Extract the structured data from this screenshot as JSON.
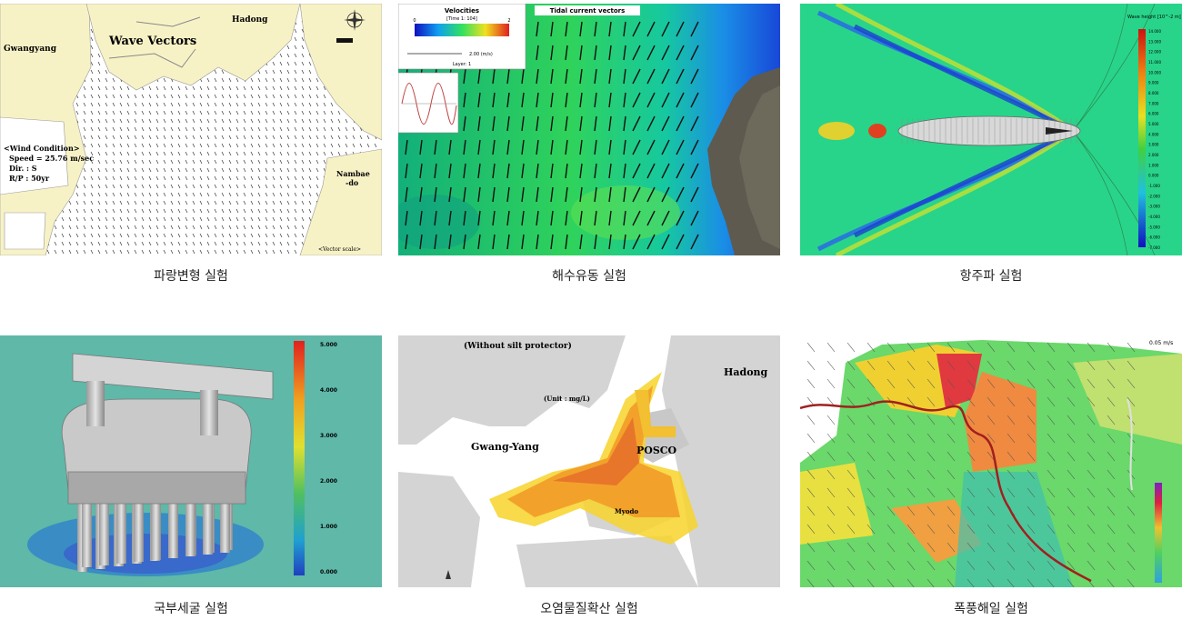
{
  "panels": [
    {
      "caption": "파랑변형 실험",
      "title": "Wave Vectors",
      "places": [
        "Gwangyang",
        "Hadong",
        "Nambae",
        "-do"
      ],
      "wind_condition": {
        "heading": "<Wind Condition>",
        "speed": "Speed = 25.76 m/sec",
        "dir": "Dir. : S",
        "rp": "R/P : 50yr"
      },
      "vector_scale": "<Vector scale>"
    },
    {
      "caption": "해수유동 실험",
      "title": "Tidal current vectors",
      "legend": {
        "title": "Velocities",
        "sub": "[Time 1: 104]",
        "min": "0",
        "max": "2",
        "speed_label": "2.00 (m/s)",
        "layer": "Layer: 1"
      }
    },
    {
      "caption": "항주파 실험",
      "colorbar_title": "Wave height [10^-2 m]",
      "colorbar_ticks": [
        "14.000",
        "13.000",
        "12.000",
        "11.000",
        "10.000",
        "9.000",
        "8.000",
        "7.000",
        "6.000",
        "5.000",
        "4.000",
        "3.000",
        "2.000",
        "1.000",
        "0.000",
        "-1.000",
        "-2.000",
        "-3.000",
        "-4.000",
        "-5.000",
        "-6.000",
        "-7.000"
      ]
    },
    {
      "caption": "국부세굴 실험",
      "colorbar_ticks": [
        "5.000",
        "4.000",
        "3.000",
        "2.000",
        "1.000",
        "0.000"
      ]
    },
    {
      "caption": "오염물질확산 실험",
      "subtitle": "(Without silt protector)",
      "unit": "(Unit : mg/L)",
      "places": [
        "Hadong",
        "Gwang-Yang",
        "POSCO",
        "Myodo"
      ]
    },
    {
      "caption": "폭풍해일 실험",
      "speed_label": "0.05 m/s"
    }
  ],
  "colors": {
    "land": "#f7f2c6",
    "sea": "#ffffff",
    "caption_text": "#222222"
  }
}
